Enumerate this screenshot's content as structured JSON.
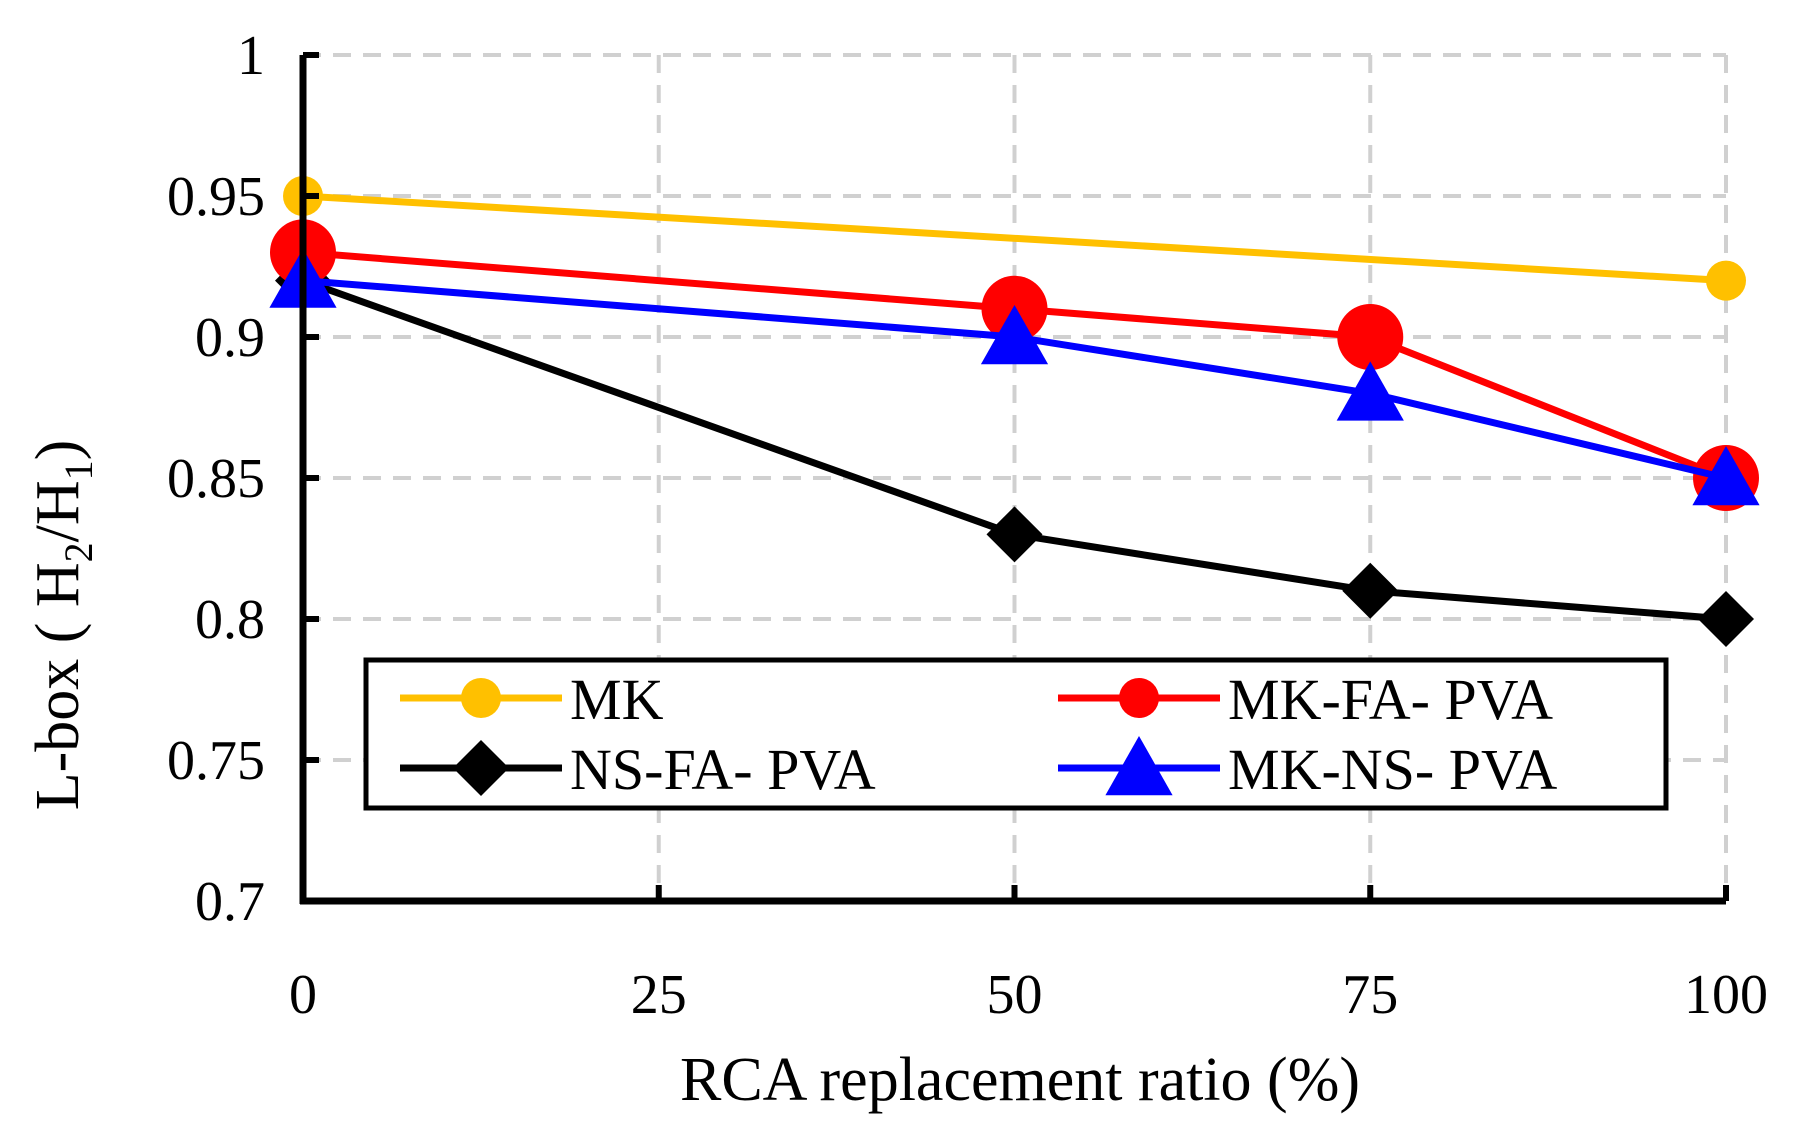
{
  "chart_data": {
    "type": "line",
    "title": "",
    "xlabel": "RCA replacement ratio (%)",
    "ylabel": "L-box ( H2/H1)",
    "ylabel_parts": {
      "prefix": "L-box ( H",
      "sub1": "2",
      "mid": "/H",
      "sub2": "1",
      "suffix": ")"
    },
    "xlim": [
      0,
      100
    ],
    "ylim": [
      0.7,
      1
    ],
    "x_ticks": [
      0,
      25,
      50,
      75,
      100
    ],
    "x_tick_labels": [
      "0",
      "25",
      "50",
      "75",
      "100"
    ],
    "y_ticks": [
      0.7,
      0.75,
      0.8,
      0.85,
      0.9,
      0.95,
      1
    ],
    "y_tick_labels": [
      "0.7",
      "0.75",
      "0.8",
      "0.85",
      "0.9",
      "0.95",
      "1"
    ],
    "grid": true,
    "legend_position": "bottom-center",
    "series": [
      {
        "name": "MK",
        "color": "#FFC000",
        "marker": "circle",
        "x": [
          0,
          100
        ],
        "values": [
          0.95,
          0.92
        ]
      },
      {
        "name": "MK-FA- PVA",
        "color": "#FF0000",
        "marker": "circle-large",
        "x": [
          0,
          50,
          75,
          100
        ],
        "values": [
          0.93,
          0.91,
          0.9,
          0.85
        ]
      },
      {
        "name": "NS-FA- PVA",
        "color": "#000000",
        "marker": "diamond",
        "x": [
          0,
          50,
          75,
          100
        ],
        "values": [
          0.92,
          0.83,
          0.81,
          0.8
        ]
      },
      {
        "name": "MK-NS- PVA",
        "color": "#0000FF",
        "marker": "triangle",
        "x": [
          0,
          50,
          75,
          100
        ],
        "values": [
          0.92,
          0.9,
          0.88,
          0.85
        ]
      }
    ]
  }
}
